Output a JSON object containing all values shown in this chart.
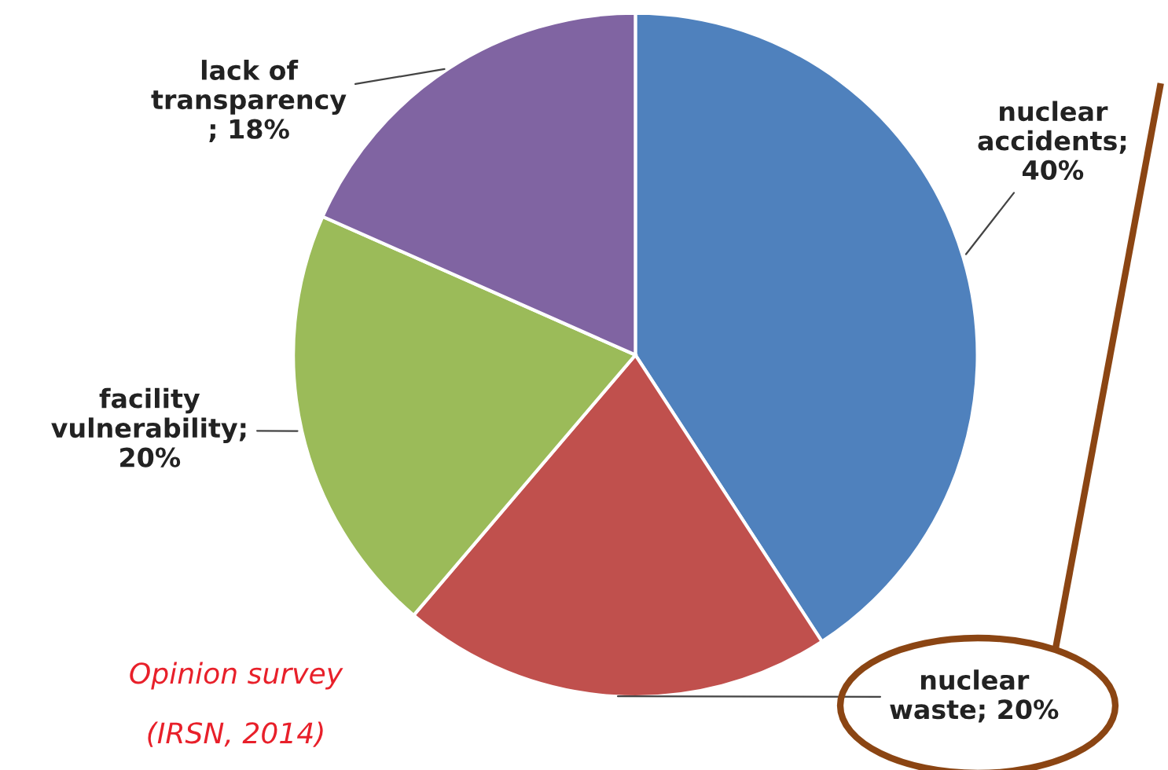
{
  "chart_data": {
    "type": "pie",
    "categories": [
      "nuclear accidents",
      "nuclear waste",
      "facility vulnerability",
      "lack of transparency"
    ],
    "value_labels": [
      "; 40%",
      "; 20%",
      "; 20%",
      "; 18%"
    ],
    "values": [
      40,
      20,
      20,
      18
    ],
    "colors": [
      "#4f81bd",
      "#c0504d",
      "#9bbb59",
      "#8064a2"
    ],
    "annotations": [
      "Opinion survey",
      "(IRSN, 2014)"
    ],
    "legend": false
  }
}
